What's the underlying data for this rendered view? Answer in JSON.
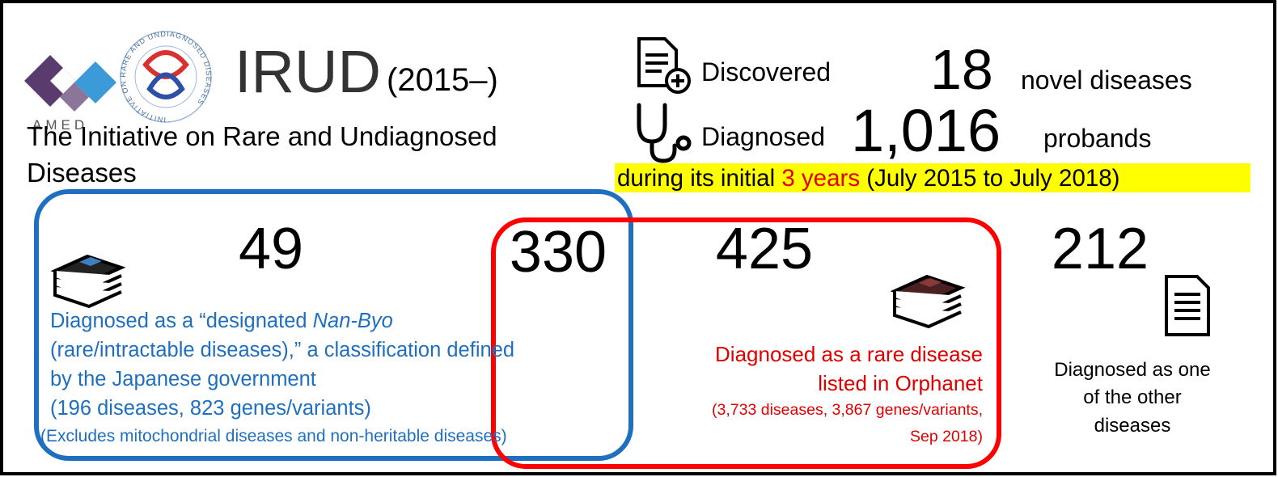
{
  "header": {
    "logo_text": "AMED",
    "seal_text": "INITIATIVE ON RARE AND UNDIAGNOSED DISEASES",
    "title": "IRUD",
    "years": "(2015–)",
    "subtitle": [
      "The Initiative on Rare and Undiagnosed",
      "Diseases"
    ]
  },
  "summary": {
    "rows": [
      {
        "verb": "Discovered",
        "count": 18,
        "unit": "novel diseases"
      },
      {
        "verb": "Diagnosed",
        "count": "1,016",
        "unit": "probands"
      }
    ],
    "period": {
      "before": "during its initial ",
      "highlight": "3 years",
      "after": " (July 2015 to July 2018)"
    }
  },
  "groups": {
    "nanbyo": {
      "count": 49,
      "lead": "Diagnosed as a “designated ",
      "term": "Nan-Byo",
      "lines": [
        "(rare/intractable diseases),” a classification defined",
        "by the Japanese government",
        "(196 diseases, 823 genes/variants)"
      ],
      "note": "(Excludes mitochondrial diseases and non-heritable diseases)"
    },
    "overlap": {
      "count": 330
    },
    "orphanet": {
      "count": 425,
      "lines": [
        "Diagnosed as a rare disease",
        "listed in Orphanet"
      ],
      "notes": [
        "(3,733 diseases, 3,867 genes/variants,",
        "Sep 2018)"
      ]
    },
    "other": {
      "count": 212,
      "lines": [
        "Diagnosed as one",
        "of the other",
        "diseases"
      ]
    }
  }
}
